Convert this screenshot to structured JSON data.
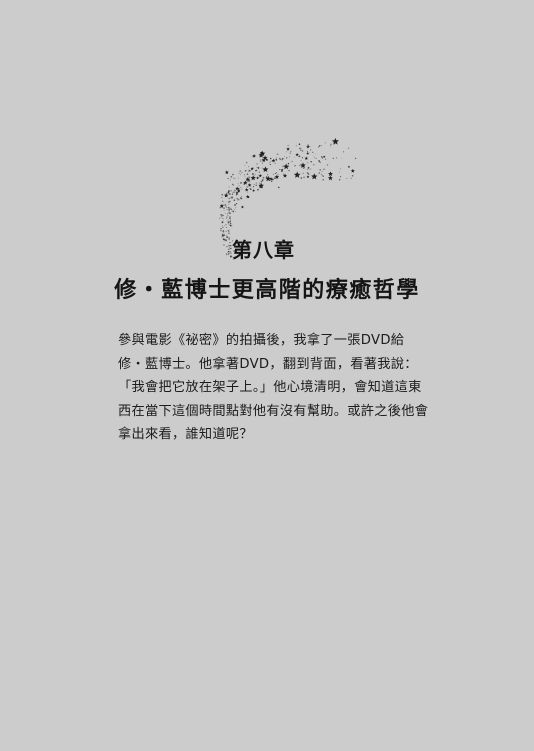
{
  "chapter": {
    "label": "第八章",
    "title": "修・藍博士更高階的療癒哲學"
  },
  "body": {
    "lines": [
      "參與電影《祕密》的拍攝後，我拿了一張DVD給",
      "修・藍博士。他拿著DVD，翻到背面，看著我說：",
      "「我會把它放在架子上。」他心境清明，會知道這東",
      "西在當下這個時間點對他有沒有幫助。或許之後他會",
      "拿出來看，誰知道呢？"
    ]
  }
}
